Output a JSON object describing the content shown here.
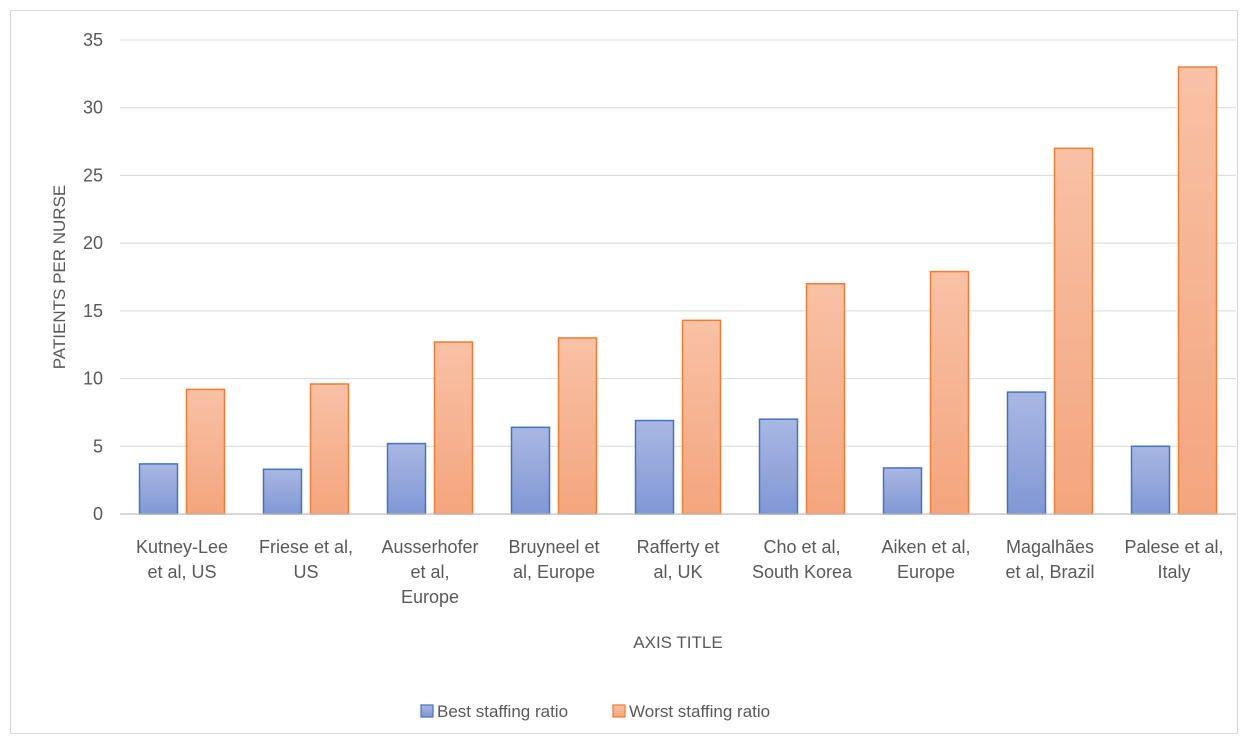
{
  "chart_data": {
    "type": "bar",
    "title": "",
    "xlabel": "AXIS TITLE",
    "ylabel": "PATIENTS PER NURSE",
    "ylim": [
      0,
      35
    ],
    "yticks": [
      0,
      5,
      10,
      15,
      20,
      25,
      30,
      35
    ],
    "grid": true,
    "legend_position": "bottom",
    "categories": [
      [
        "Kutney-Lee",
        "et al, US"
      ],
      [
        "Friese et al,",
        "US"
      ],
      [
        "Ausserhofer",
        "et al,",
        "Europe"
      ],
      [
        "Bruyneel et",
        "al, Europe"
      ],
      [
        "Rafferty et",
        "al, UK"
      ],
      [
        "Cho et al,",
        "South Korea"
      ],
      [
        "Aiken et al,",
        "Europe"
      ],
      [
        "Magalhães",
        "et al, Brazil"
      ],
      [
        "Palese et al,",
        "Italy"
      ]
    ],
    "series": [
      {
        "name": "Best staffing ratio",
        "fill_top": "#a9b8e3",
        "fill_bottom": "#8197d5",
        "stroke": "#4472c4",
        "values": [
          3.7,
          3.3,
          5.2,
          6.4,
          6.9,
          7.0,
          3.4,
          9.0,
          5.0
        ]
      },
      {
        "name": "Worst staffing ratio",
        "fill_top": "#f8c1a6",
        "fill_bottom": "#f4a57d",
        "stroke": "#ed7d31",
        "values": [
          9.2,
          9.6,
          12.7,
          13.0,
          14.3,
          17.0,
          17.9,
          27.0,
          33.0
        ]
      }
    ]
  }
}
